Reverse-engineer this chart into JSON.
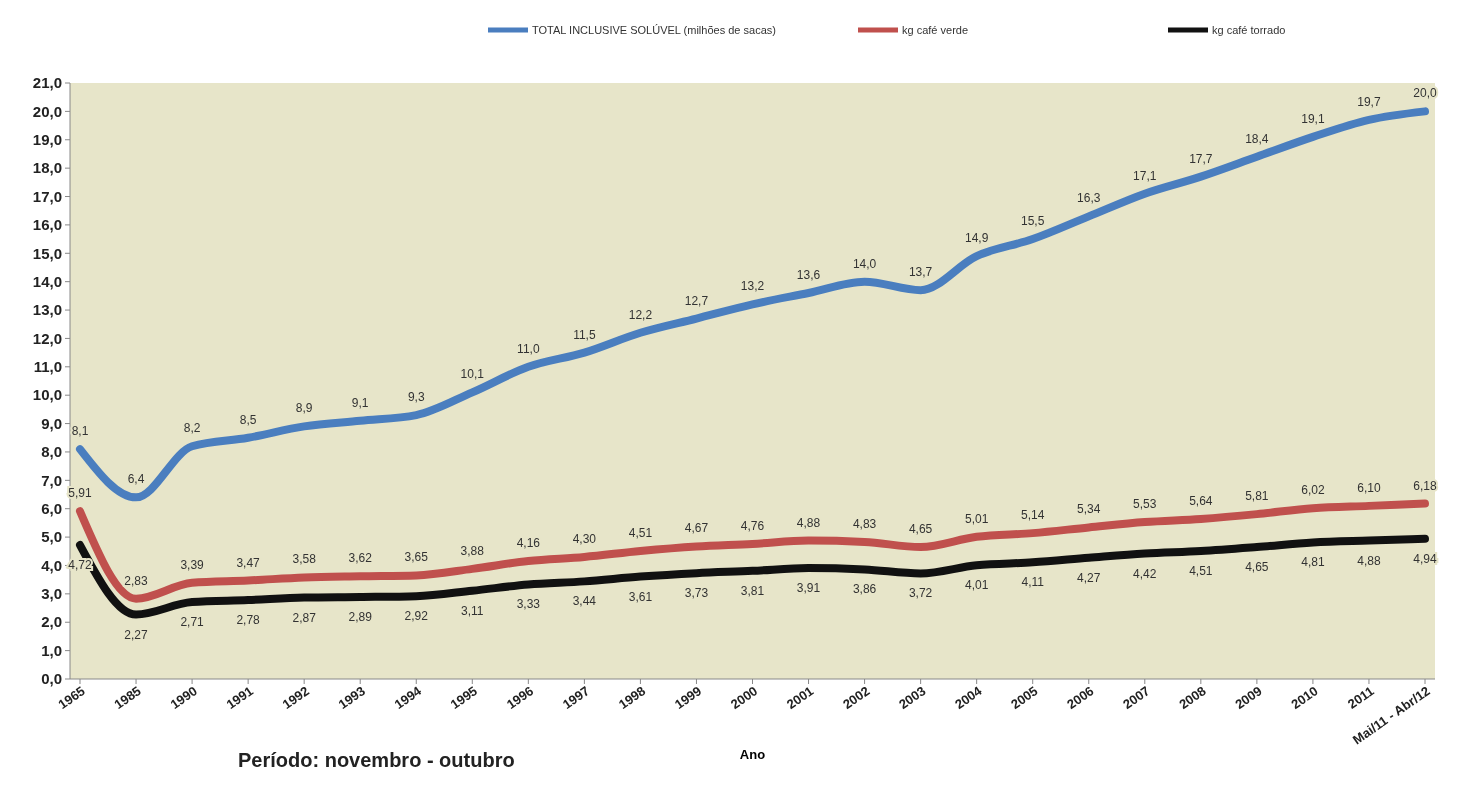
{
  "chart_data": {
    "type": "line",
    "xlabel": "Ano",
    "legend": "top",
    "annotations": [
      "Período: novembro - outubro"
    ],
    "categories": [
      "1965",
      "1985",
      "1990",
      "1991",
      "1992",
      "1993",
      "1994",
      "1995",
      "1996",
      "1997",
      "1998",
      "1999",
      "2000",
      "2001",
      "2002",
      "2003",
      "2004",
      "2005",
      "2006",
      "2007",
      "2008",
      "2009",
      "2010",
      "2011",
      "Mai/11 - Abr/12"
    ],
    "ylim": [
      0,
      21
    ],
    "yticks": [
      {
        "value": 0,
        "label": "0,0"
      },
      {
        "value": 1,
        "label": "1,0"
      },
      {
        "value": 2,
        "label": "2,0"
      },
      {
        "value": 3,
        "label": "3,0"
      },
      {
        "value": 4,
        "label": "4,0"
      },
      {
        "value": 5,
        "label": "5,0"
      },
      {
        "value": 6,
        "label": "6,0"
      },
      {
        "value": 7,
        "label": "7,0"
      },
      {
        "value": 8,
        "label": "8,0"
      },
      {
        "value": 9,
        "label": "9,0"
      },
      {
        "value": 10,
        "label": "10,0"
      },
      {
        "value": 11,
        "label": "11,0"
      },
      {
        "value": 12,
        "label": "12,0"
      },
      {
        "value": 13,
        "label": "13,0"
      },
      {
        "value": 14,
        "label": "14,0"
      },
      {
        "value": 15,
        "label": "15,0"
      },
      {
        "value": 16,
        "label": "16,0"
      },
      {
        "value": 17,
        "label": "17,0"
      },
      {
        "value": 18,
        "label": "18,0"
      },
      {
        "value": 19,
        "label": "19,0"
      },
      {
        "value": 20,
        "label": "20,0"
      },
      {
        "value": 21,
        "label": "21,0"
      }
    ],
    "series": [
      {
        "name": "TOTAL INCLUSIVE  SOLÚVEL (milhões de sacas)",
        "color": "#4a7ebf",
        "values": [
          8.1,
          6.4,
          8.2,
          8.5,
          8.9,
          9.1,
          9.3,
          10.1,
          11.0,
          11.5,
          12.2,
          12.7,
          13.2,
          13.6,
          14.0,
          13.7,
          14.9,
          15.5,
          16.3,
          17.1,
          17.7,
          18.4,
          19.1,
          19.7,
          20.0
        ],
        "value_labels": [
          "8,1",
          "6,4",
          "8,2",
          "8,5",
          "8,9",
          "9,1",
          "9,3",
          "10,1",
          "11,0",
          "11,5",
          "12,2",
          "12,7",
          "13,2",
          "13,6",
          "14,0",
          "13,7",
          "14,9",
          "15,5",
          "16,3",
          "17,1",
          "17,7",
          "18,4",
          "19,1",
          "19,7",
          "20,0"
        ]
      },
      {
        "name": "kg café verde",
        "color": "#c0504d",
        "values": [
          5.91,
          2.83,
          3.39,
          3.47,
          3.58,
          3.62,
          3.65,
          3.88,
          4.16,
          4.3,
          4.51,
          4.67,
          4.76,
          4.88,
          4.83,
          4.65,
          5.01,
          5.14,
          5.34,
          5.53,
          5.64,
          5.81,
          6.02,
          6.1,
          6.18
        ],
        "value_labels": [
          "5,91",
          "2,83",
          "3,39",
          "3,47",
          "3,58",
          "3,62",
          "3,65",
          "3,88",
          "4,16",
          "4,30",
          "4,51",
          "4,67",
          "4,76",
          "4,88",
          "4,83",
          "4,65",
          "5,01",
          "5,14",
          "5,34",
          "5,53",
          "5,64",
          "5,81",
          "6,02",
          "6,10",
          "6,18"
        ]
      },
      {
        "name": "kg café torrado",
        "color": "#111111",
        "values": [
          4.72,
          2.27,
          2.71,
          2.78,
          2.87,
          2.89,
          2.92,
          3.11,
          3.33,
          3.44,
          3.61,
          3.73,
          3.81,
          3.91,
          3.86,
          3.72,
          4.01,
          4.11,
          4.27,
          4.42,
          4.51,
          4.65,
          4.81,
          4.88,
          4.94
        ],
        "value_labels": [
          "4,72",
          "2,27",
          "2,71",
          "2,78",
          "2,87",
          "2,89",
          "2,92",
          "3,11",
          "3,33",
          "3,44",
          "3,61",
          "3,73",
          "3,81",
          "3,91",
          "3,86",
          "3,72",
          "4,01",
          "4,11",
          "4,27",
          "4,42",
          "4,51",
          "4,65",
          "4,81",
          "4,88",
          "4,94"
        ]
      }
    ]
  }
}
